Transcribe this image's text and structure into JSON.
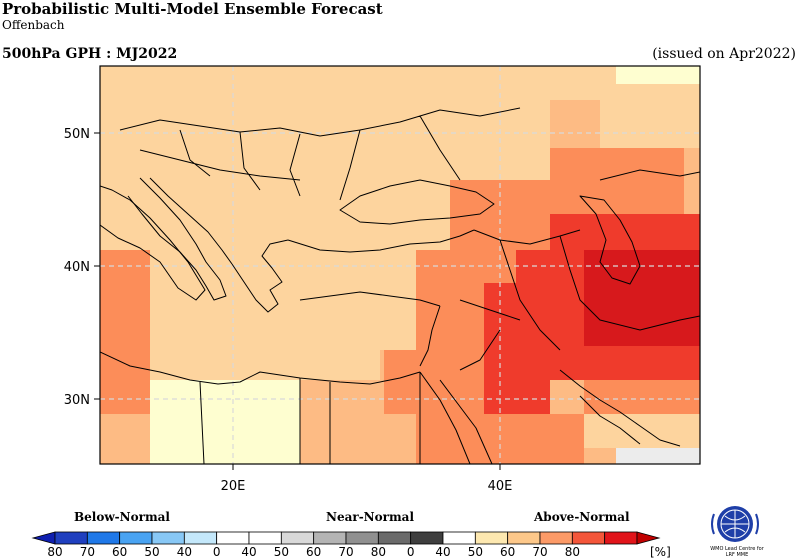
{
  "header": {
    "title": "Probabilistic Multi-Model Ensemble Forecast",
    "subtitle": "Offenbach",
    "variable_period": "500hPa GPH : MJ2022",
    "issued": "(issued on Apr2022)"
  },
  "map": {
    "lat_labels": [
      "50N",
      "40N",
      "30N"
    ],
    "lon_labels": [
      "20E",
      "40E"
    ],
    "colors": {
      "above_40_50": "#fdd49e",
      "above_50_60": "#fdbb84",
      "above_60_70": "#fc8d59",
      "above_70_80": "#ef3b2c",
      "above_80": "#d7191c",
      "normal_40_50": "#ececec",
      "below_40_50": "#fefed0"
    }
  },
  "legend": {
    "below_label": "Below-Normal",
    "near_label": "Near-Normal",
    "above_label": "Above-Normal",
    "unit": "[%]",
    "ticks": [
      "80",
      "70",
      "60",
      "50",
      "40",
      "0",
      "40",
      "50",
      "60",
      "70",
      "80",
      "0",
      "40",
      "50",
      "60",
      "70",
      "80"
    ],
    "colors": [
      "#1f3fbf",
      "#1f78e8",
      "#49a3f2",
      "#88c8f6",
      "#c4e8fb",
      "#ffffff",
      "#ffffff",
      "#d9d9d9",
      "#b4b4b4",
      "#909090",
      "#6a6a6a",
      "#3e3e3e",
      "#ffffff",
      "#fde8b0",
      "#fdc88a",
      "#fc9a67",
      "#f4563a",
      "#e1141a"
    ]
  },
  "logo_text": [
    "WMO Lead Centre for",
    "LRF MME"
  ]
}
